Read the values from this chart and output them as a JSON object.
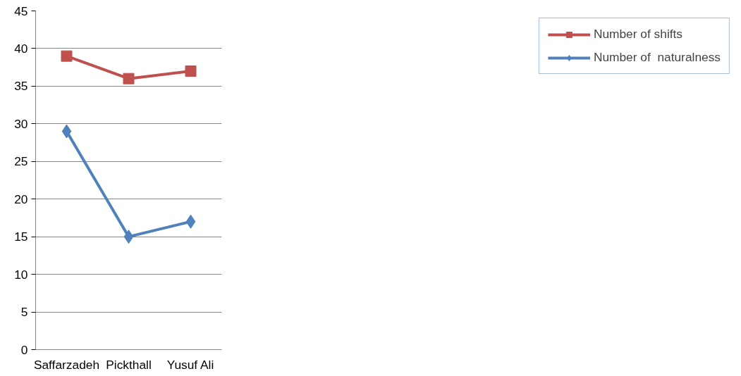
{
  "chart_data": {
    "type": "line",
    "categories": [
      "Saffarzadeh",
      "Pickthall",
      "Yusuf Ali"
    ],
    "series": [
      {
        "name": "Number of shifts",
        "color": "#c0504d",
        "marker": "square",
        "values": [
          39,
          36,
          37
        ]
      },
      {
        "name": "Number of  naturalness",
        "color": "#4f81bd",
        "marker": "diamond",
        "values": [
          29,
          15,
          17
        ]
      }
    ],
    "ylim": [
      0,
      45
    ],
    "yticks": [
      0,
      5,
      10,
      15,
      20,
      25,
      30,
      35,
      40,
      45
    ],
    "grid": "y",
    "legend": "right",
    "line_style": "solid"
  }
}
